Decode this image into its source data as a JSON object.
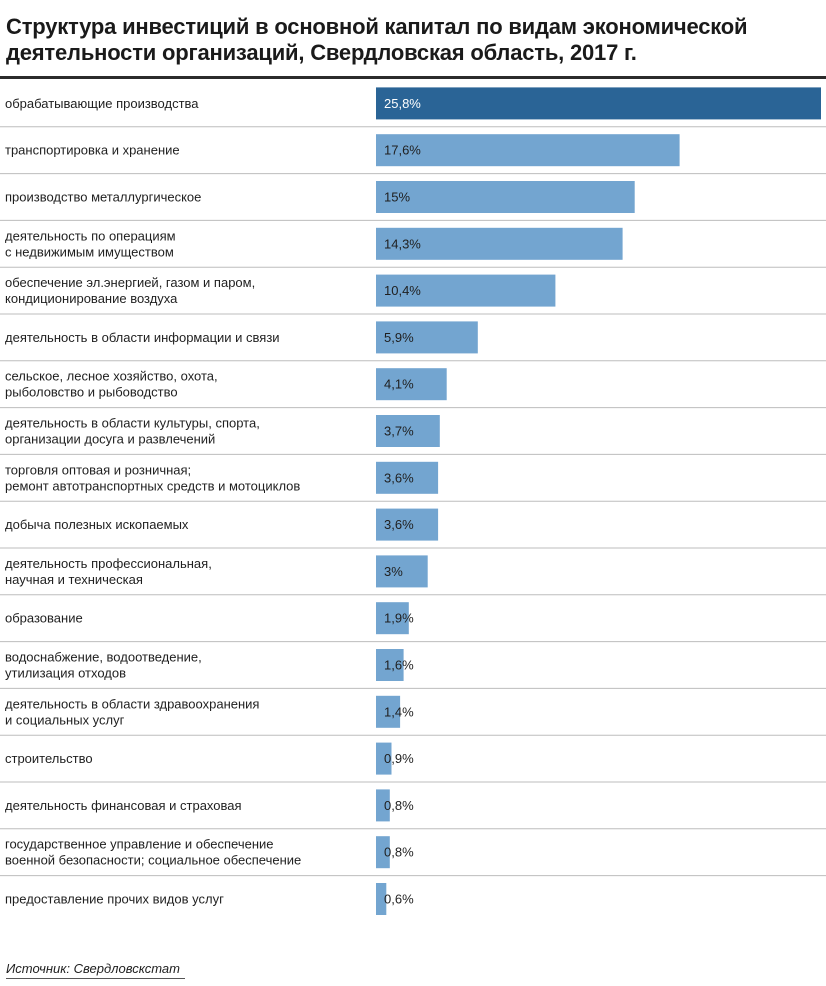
{
  "chart_data": {
    "type": "bar",
    "orientation": "horizontal",
    "title": "Структура инвестиций в основной капитал по видам экономической деятельности организаций, Свердловская область, 2017 г.",
    "xlabel": "",
    "ylabel": "",
    "unit": "%",
    "xlim": [
      0,
      25.8
    ],
    "grid": false,
    "categories": [
      "обрабатывающие производства",
      "транспортировка и хранение",
      "производство металлургическое",
      "деятельность по операциям\nс недвижимым имуществом",
      "обеспечение эл.энергией, газом и паром,\nкондиционирование воздуха",
      "деятельность в области информации и связи",
      "сельское, лесное хозяйство, охота,\nрыболовство и рыбоводство",
      "деятельность в области культуры, спорта,\nорганизации досуга и развлечений",
      "торговля оптовая и розничная;\nремонт автотранспортных средств и мотоциклов",
      "добыча полезных ископаемых",
      "деятельность профессиональная,\nнаучная и техническая",
      "образование",
      "водоснабжение, водоотведение,\nутилизация отходов",
      "деятельность в области здравоохранения\nи социальных услуг",
      "строительство",
      "деятельность финансовая и страховая",
      "государственное управление и обеспечение\nвоенной безопасности; социальное обеспечение",
      "предоставление прочих видов услуг"
    ],
    "values": [
      25.8,
      17.6,
      15,
      14.3,
      10.4,
      5.9,
      4.1,
      3.7,
      3.6,
      3.6,
      3,
      1.9,
      1.6,
      1.4,
      0.9,
      0.8,
      0.8,
      0.6
    ],
    "value_labels": [
      "25,8%",
      "17,6%",
      "15%",
      "14,3%",
      "10,4%",
      "5,9%",
      "4,1%",
      "3,7%",
      "3,6%",
      "3,6%",
      "3%",
      "1,9%",
      "1,6%",
      "1,4%",
      "0,9%",
      "0,8%",
      "0,8%",
      "0,6%"
    ],
    "colors": {
      "highlight": "#2a6496",
      "bar": "#73a5d0",
      "highlight_text": "#ffffff",
      "bar_text": "#1f1f1f"
    },
    "highlight_index": 0
  },
  "source": "Источник: Свердловскстат"
}
